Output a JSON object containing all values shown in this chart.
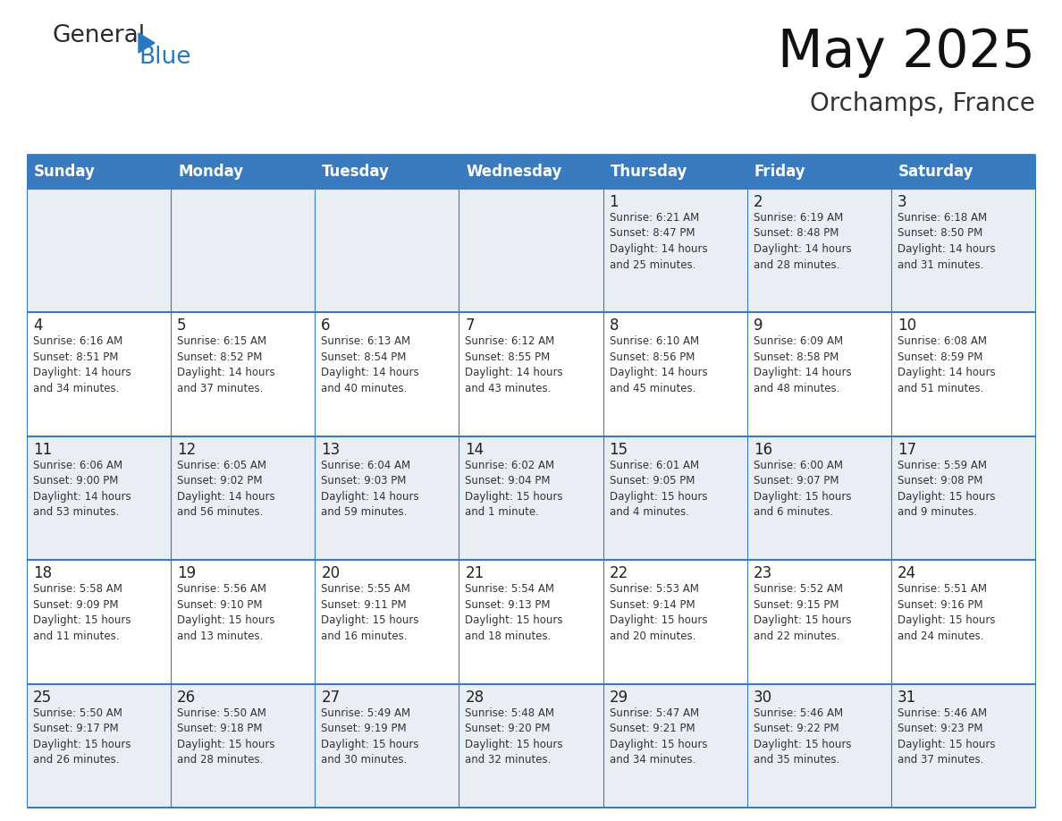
{
  "title": "May 2025",
  "subtitle": "Orchamps, France",
  "header_color": "#3a7abf",
  "header_text_color": "#ffffff",
  "row_colors": [
    "#e8eef4",
    "#ffffff",
    "#e8eef4",
    "#ffffff",
    "#e8eef4"
  ],
  "border_color": "#3a7abf",
  "text_color": "#222222",
  "info_color": "#333333",
  "day_names": [
    "Sunday",
    "Monday",
    "Tuesday",
    "Wednesday",
    "Thursday",
    "Friday",
    "Saturday"
  ],
  "calendar": [
    [
      {
        "day": "",
        "info": ""
      },
      {
        "day": "",
        "info": ""
      },
      {
        "day": "",
        "info": ""
      },
      {
        "day": "",
        "info": ""
      },
      {
        "day": "1",
        "info": "Sunrise: 6:21 AM\nSunset: 8:47 PM\nDaylight: 14 hours\nand 25 minutes."
      },
      {
        "day": "2",
        "info": "Sunrise: 6:19 AM\nSunset: 8:48 PM\nDaylight: 14 hours\nand 28 minutes."
      },
      {
        "day": "3",
        "info": "Sunrise: 6:18 AM\nSunset: 8:50 PM\nDaylight: 14 hours\nand 31 minutes."
      }
    ],
    [
      {
        "day": "4",
        "info": "Sunrise: 6:16 AM\nSunset: 8:51 PM\nDaylight: 14 hours\nand 34 minutes."
      },
      {
        "day": "5",
        "info": "Sunrise: 6:15 AM\nSunset: 8:52 PM\nDaylight: 14 hours\nand 37 minutes."
      },
      {
        "day": "6",
        "info": "Sunrise: 6:13 AM\nSunset: 8:54 PM\nDaylight: 14 hours\nand 40 minutes."
      },
      {
        "day": "7",
        "info": "Sunrise: 6:12 AM\nSunset: 8:55 PM\nDaylight: 14 hours\nand 43 minutes."
      },
      {
        "day": "8",
        "info": "Sunrise: 6:10 AM\nSunset: 8:56 PM\nDaylight: 14 hours\nand 45 minutes."
      },
      {
        "day": "9",
        "info": "Sunrise: 6:09 AM\nSunset: 8:58 PM\nDaylight: 14 hours\nand 48 minutes."
      },
      {
        "day": "10",
        "info": "Sunrise: 6:08 AM\nSunset: 8:59 PM\nDaylight: 14 hours\nand 51 minutes."
      }
    ],
    [
      {
        "day": "11",
        "info": "Sunrise: 6:06 AM\nSunset: 9:00 PM\nDaylight: 14 hours\nand 53 minutes."
      },
      {
        "day": "12",
        "info": "Sunrise: 6:05 AM\nSunset: 9:02 PM\nDaylight: 14 hours\nand 56 minutes."
      },
      {
        "day": "13",
        "info": "Sunrise: 6:04 AM\nSunset: 9:03 PM\nDaylight: 14 hours\nand 59 minutes."
      },
      {
        "day": "14",
        "info": "Sunrise: 6:02 AM\nSunset: 9:04 PM\nDaylight: 15 hours\nand 1 minute."
      },
      {
        "day": "15",
        "info": "Sunrise: 6:01 AM\nSunset: 9:05 PM\nDaylight: 15 hours\nand 4 minutes."
      },
      {
        "day": "16",
        "info": "Sunrise: 6:00 AM\nSunset: 9:07 PM\nDaylight: 15 hours\nand 6 minutes."
      },
      {
        "day": "17",
        "info": "Sunrise: 5:59 AM\nSunset: 9:08 PM\nDaylight: 15 hours\nand 9 minutes."
      }
    ],
    [
      {
        "day": "18",
        "info": "Sunrise: 5:58 AM\nSunset: 9:09 PM\nDaylight: 15 hours\nand 11 minutes."
      },
      {
        "day": "19",
        "info": "Sunrise: 5:56 AM\nSunset: 9:10 PM\nDaylight: 15 hours\nand 13 minutes."
      },
      {
        "day": "20",
        "info": "Sunrise: 5:55 AM\nSunset: 9:11 PM\nDaylight: 15 hours\nand 16 minutes."
      },
      {
        "day": "21",
        "info": "Sunrise: 5:54 AM\nSunset: 9:13 PM\nDaylight: 15 hours\nand 18 minutes."
      },
      {
        "day": "22",
        "info": "Sunrise: 5:53 AM\nSunset: 9:14 PM\nDaylight: 15 hours\nand 20 minutes."
      },
      {
        "day": "23",
        "info": "Sunrise: 5:52 AM\nSunset: 9:15 PM\nDaylight: 15 hours\nand 22 minutes."
      },
      {
        "day": "24",
        "info": "Sunrise: 5:51 AM\nSunset: 9:16 PM\nDaylight: 15 hours\nand 24 minutes."
      }
    ],
    [
      {
        "day": "25",
        "info": "Sunrise: 5:50 AM\nSunset: 9:17 PM\nDaylight: 15 hours\nand 26 minutes."
      },
      {
        "day": "26",
        "info": "Sunrise: 5:50 AM\nSunset: 9:18 PM\nDaylight: 15 hours\nand 28 minutes."
      },
      {
        "day": "27",
        "info": "Sunrise: 5:49 AM\nSunset: 9:19 PM\nDaylight: 15 hours\nand 30 minutes."
      },
      {
        "day": "28",
        "info": "Sunrise: 5:48 AM\nSunset: 9:20 PM\nDaylight: 15 hours\nand 32 minutes."
      },
      {
        "day": "29",
        "info": "Sunrise: 5:47 AM\nSunset: 9:21 PM\nDaylight: 15 hours\nand 34 minutes."
      },
      {
        "day": "30",
        "info": "Sunrise: 5:46 AM\nSunset: 9:22 PM\nDaylight: 15 hours\nand 35 minutes."
      },
      {
        "day": "31",
        "info": "Sunrise: 5:46 AM\nSunset: 9:23 PM\nDaylight: 15 hours\nand 37 minutes."
      }
    ]
  ],
  "logo_general_color": "#2a2a2a",
  "logo_blue_color": "#2878be",
  "logo_triangle_color": "#2878be",
  "fig_width": 11.88,
  "fig_height": 9.18,
  "dpi": 100
}
